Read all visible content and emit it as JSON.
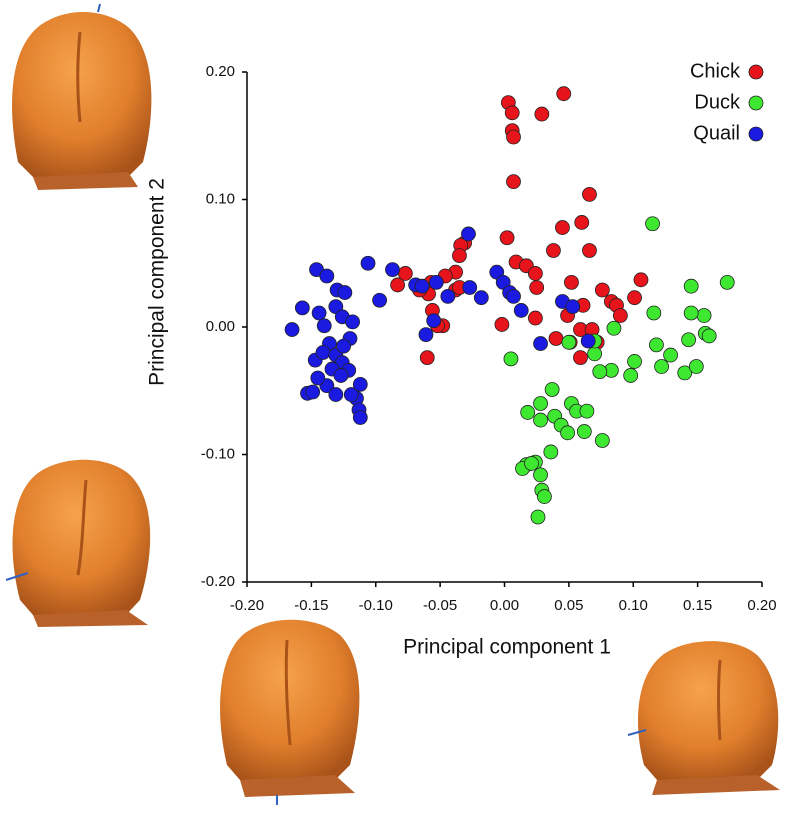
{
  "chart_data": {
    "type": "scatter",
    "xlabel": "Principal component 1",
    "ylabel": "Principal component 2",
    "xlim": [
      -0.2,
      0.2
    ],
    "ylim": [
      -0.2,
      0.2
    ],
    "xticks": [
      {
        "value": -0.2,
        "label": "-0.20"
      },
      {
        "value": -0.15,
        "label": "-0.15"
      },
      {
        "value": -0.1,
        "label": "-0.10"
      },
      {
        "value": -0.05,
        "label": "-0.05"
      },
      {
        "value": 0,
        "label": "0.00"
      },
      {
        "value": 0.05,
        "label": "0.05"
      },
      {
        "value": 0.1,
        "label": "0.10"
      },
      {
        "value": 0.15,
        "label": "0.15"
      },
      {
        "value": 0.2,
        "label": "0.20"
      }
    ],
    "yticks": [
      {
        "value": -0.2,
        "label": "-0.20"
      },
      {
        "value": -0.1,
        "label": "-0.10"
      },
      {
        "value": 0,
        "label": "0.00"
      },
      {
        "value": 0.1,
        "label": "0.10"
      },
      {
        "value": 0.2,
        "label": "0.20"
      }
    ],
    "legend": "upper right",
    "series": [
      {
        "name": "Chick",
        "color": "#e8141b",
        "x": [
          0.003,
          0.046,
          0.006,
          0.029,
          0.006,
          0.007,
          0.007,
          0.066,
          0.002,
          0.045,
          0.06,
          0.038,
          0.066,
          0.009,
          0.017,
          0.024,
          -0.031,
          -0.034,
          -0.035,
          -0.038,
          -0.046,
          -0.057,
          -0.059,
          -0.077,
          -0.083,
          -0.066,
          -0.038,
          -0.035,
          0.052,
          0.076,
          0.083,
          0.087,
          0.09,
          0.106,
          0.101,
          0.025,
          -0.056,
          -0.048,
          -0.052,
          -0.06,
          -0.002,
          0.024,
          0.04,
          0.059,
          0.068,
          0.059,
          0.049,
          0.061,
          0.051,
          0.072
        ],
        "y": [
          0.176,
          0.183,
          0.168,
          0.167,
          0.154,
          0.149,
          0.114,
          0.104,
          0.07,
          0.078,
          0.082,
          0.06,
          0.06,
          0.051,
          0.048,
          0.042,
          0.066,
          0.064,
          0.056,
          0.043,
          0.04,
          0.035,
          0.026,
          0.042,
          0.033,
          0.029,
          0.029,
          0.031,
          0.035,
          0.029,
          0.02,
          0.017,
          0.009,
          0.037,
          0.023,
          0.031,
          0.013,
          0.001,
          0.001,
          -0.024,
          0.002,
          0.007,
          -0.009,
          -0.002,
          -0.002,
          -0.024,
          0.009,
          0.017,
          -0.012,
          -0.012
        ]
      },
      {
        "name": "Duck",
        "color": "#3ee831",
        "x": [
          0.115,
          0.173,
          0.145,
          0.155,
          0.145,
          0.116,
          0.156,
          0.159,
          0.143,
          0.085,
          0.118,
          0.129,
          0.122,
          0.14,
          0.149,
          0.101,
          0.098,
          0.083,
          0.074,
          0.07,
          0.07,
          0.05,
          0.005,
          0.037,
          0.028,
          0.018,
          0.039,
          0.052,
          0.056,
          0.064,
          0.028,
          0.044,
          0.049,
          0.062,
          0.076,
          0.036,
          0.024,
          0.017,
          0.014,
          0.028,
          0.029,
          0.031,
          0.026,
          0.021
        ],
        "y": [
          0.081,
          0.035,
          0.032,
          0.009,
          0.011,
          0.011,
          -0.005,
          -0.007,
          -0.01,
          -0.001,
          -0.014,
          -0.022,
          -0.031,
          -0.036,
          -0.031,
          -0.027,
          -0.038,
          -0.034,
          -0.035,
          -0.021,
          -0.011,
          -0.012,
          -0.025,
          -0.049,
          -0.06,
          -0.067,
          -0.07,
          -0.06,
          -0.066,
          -0.066,
          -0.073,
          -0.077,
          -0.083,
          -0.082,
          -0.089,
          -0.098,
          -0.106,
          -0.108,
          -0.111,
          -0.116,
          -0.128,
          -0.133,
          -0.149,
          -0.107
        ]
      },
      {
        "name": "Quail",
        "color": "#1a1ae0",
        "x": [
          -0.146,
          -0.138,
          -0.13,
          -0.124,
          -0.106,
          -0.097,
          -0.087,
          -0.157,
          -0.144,
          -0.131,
          -0.126,
          -0.118,
          -0.165,
          -0.14,
          -0.136,
          -0.12,
          -0.147,
          -0.141,
          -0.131,
          -0.126,
          -0.121,
          -0.134,
          -0.127,
          -0.138,
          -0.145,
          -0.153,
          -0.149,
          -0.131,
          -0.115,
          -0.119,
          -0.112,
          -0.113,
          -0.112,
          -0.125,
          -0.069,
          -0.053,
          -0.044,
          -0.055,
          -0.061,
          -0.028,
          -0.027,
          -0.018,
          -0.006,
          -0.001,
          0.004,
          0.007,
          0.013,
          0.028,
          0.045,
          0.053,
          0.065,
          -0.064
        ],
        "y": [
          0.045,
          0.04,
          0.029,
          0.027,
          0.05,
          0.021,
          0.045,
          0.015,
          0.011,
          0.016,
          0.008,
          0.004,
          -0.002,
          0.001,
          -0.013,
          -0.009,
          -0.026,
          -0.02,
          -0.022,
          -0.028,
          -0.034,
          -0.033,
          -0.038,
          -0.046,
          -0.04,
          -0.052,
          -0.051,
          -0.053,
          -0.056,
          -0.053,
          -0.045,
          -0.065,
          -0.071,
          -0.015,
          0.033,
          0.035,
          0.024,
          0.005,
          -0.006,
          0.073,
          0.031,
          0.023,
          0.043,
          0.035,
          0.027,
          0.024,
          0.013,
          -0.013,
          0.02,
          0.016,
          -0.011,
          0.032
        ]
      }
    ]
  }
}
